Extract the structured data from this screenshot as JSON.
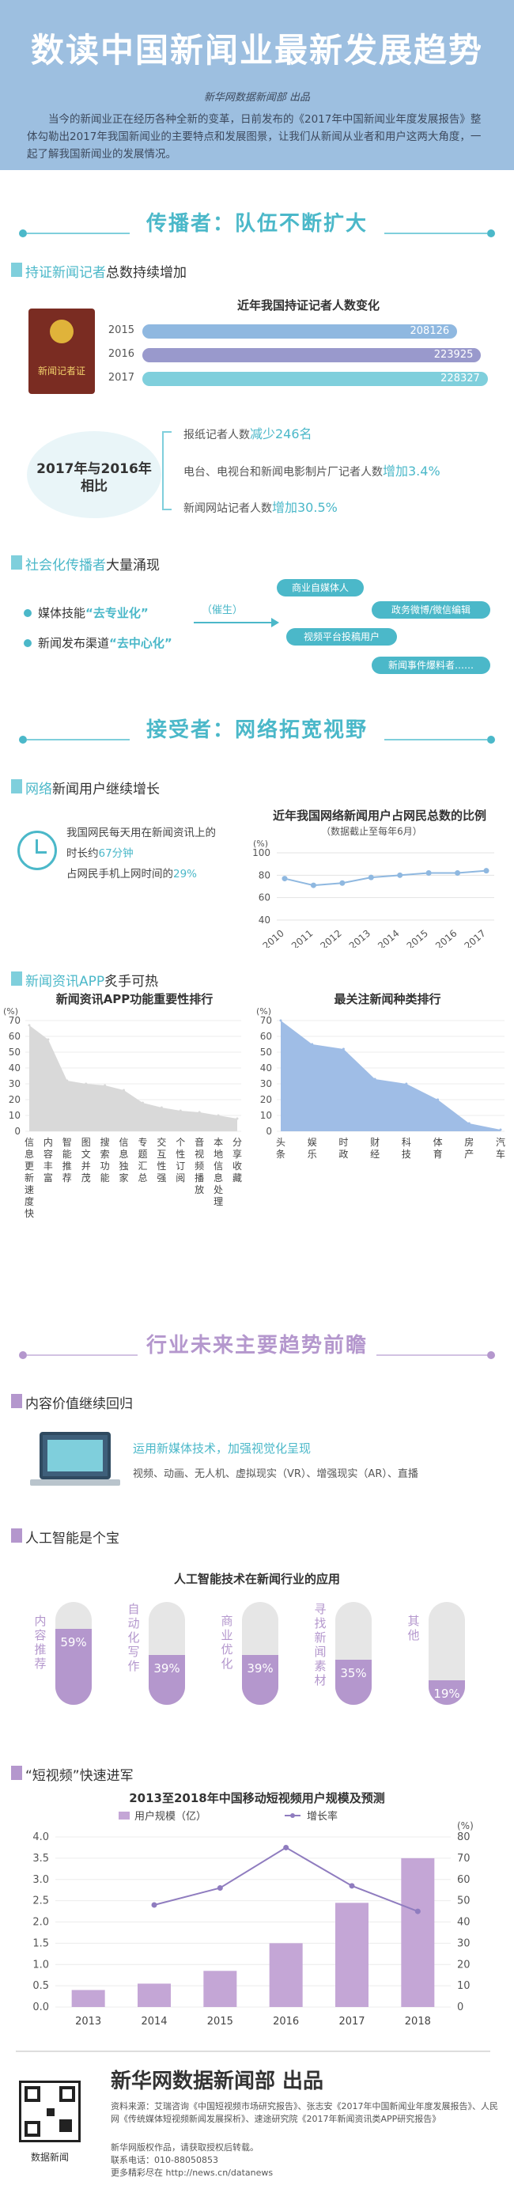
{
  "header": {
    "title": "数读中国新闻业最新发展趋势",
    "producer": "新华网数据新闻部 出品",
    "intro": "当今的新闻业正在经历各种全新的变革，日前发布的《2017年中国新闻业年度发展报告》整体勾勒出2017年我国新闻业的主要特点和发展图景，让我们从新闻从业者和用户这两大角度，一起了解我国新闻业的发展情况。"
  },
  "section1": {
    "banner": "传播者：队伍不断扩大",
    "sub1": {
      "highlight": "持证新闻记者",
      "rest": "总数持续增加"
    },
    "press_card_label": "新闻记者证",
    "chart_title": "近年我国持证记者人数变化",
    "compare_title": "2017年与2016年相比",
    "items": [
      {
        "text": "报纸记者人数",
        "hl": "减少246名"
      },
      {
        "text": "电台、电视台和新闻电影制片厂记者人数",
        "hl": "增加3.4%"
      },
      {
        "text": "新闻网站记者人数",
        "hl": "增加30.5%"
      }
    ],
    "sub2": {
      "highlight": "社会化传播者",
      "rest": "大量涌现"
    },
    "bullets": [
      {
        "text": "媒体技能",
        "hl": "“去专业化”"
      },
      {
        "text": "新闻发布渠道",
        "hl": "“去中心化”"
      }
    ],
    "arrow_label": "（催生）",
    "pills": [
      "商业自媒体人",
      "政务微博/微信编辑",
      "视频平台投稿用户",
      "新闻事件爆料者……"
    ]
  },
  "section2": {
    "banner": "接受者：网络拓宽视野",
    "sub1": {
      "highlight": "网络",
      "rest": "新闻用户继续增长"
    },
    "clock_text1": "我国网民每天用在新闻资讯上的",
    "clock_text2": "时长约",
    "clock_hl1": "67分钟",
    "clock_text3": "占网民手机上网时间的",
    "clock_hl2": "29%",
    "line_title": "近年我国网络新闻用户占网民总数的比例",
    "line_subtitle": "（数据截止至每年6月）",
    "line_unit": "(%)",
    "sub2": {
      "highlight": "新闻资讯APP",
      "rest": "炙手可热"
    },
    "app_title": "新闻资讯APP功能重要性排行",
    "type_title": "最关注新闻种类排行",
    "area_unit": "(%)"
  },
  "section3": {
    "banner": "行业未来主要趋势前瞻",
    "sub1": "内容价值继续回归",
    "tech_hl": "运用新媒体技术，加强视觉化呈现",
    "tech_list": "视频、动画、无人机、虚拟现实（VR）、增强现实（AR）、直播",
    "sub2": "人工智能是个宝",
    "ai_title": "人工智能技术在新闻行业的应用",
    "sub3": "“短视频”快速进军",
    "combo_title": "2013至2018年中国移动短视频用户规模及预测",
    "legend_bar": "用户规模（亿）",
    "legend_line": "增长率"
  },
  "footer": {
    "org": "新华网数据新闻部 出品",
    "qr_label": "数据新闻",
    "sources": "资料来源：艾瑞咨询《中国短视频市场研究报告》、张志安《2017年中国新闻业年度发展报告》、人民网《传统媒体短视频新闻发展探析》、速途研究院《2017年新闻资讯类APP研究报告》",
    "line2": "新华网版权作品，请获取授权后转载。",
    "line3": "联系电话：010-88050853",
    "line4": "更多精彩尽在 http://news.cn/datanews"
  },
  "chart_data": [
    {
      "type": "bar",
      "title": "近年我国持证记者人数变化",
      "categories": [
        "2015",
        "2016",
        "2017"
      ],
      "values": [
        208126,
        223925,
        228327
      ],
      "colors": [
        "#8fb8e0",
        "#9999cc",
        "#7fcfdc"
      ]
    },
    {
      "type": "line",
      "title": "近年我国网络新闻用户占网民总数的比例",
      "x": [
        "2010",
        "2011",
        "2012",
        "2013",
        "2014",
        "2015",
        "2016",
        "2017"
      ],
      "values": [
        77,
        71,
        73,
        78,
        80,
        82,
        82,
        84
      ],
      "ylim": [
        40,
        100
      ],
      "yticks": [
        40,
        60,
        80,
        100
      ]
    },
    {
      "type": "area",
      "title": "新闻资讯APP功能重要性排行",
      "categories": [
        "信息更新速度快",
        "内容丰富",
        "智能推荐",
        "图文并茂",
        "搜索功能",
        "信息独家",
        "专题汇总",
        "交互性强",
        "个性订阅",
        "音视频播放",
        "本地信息处理",
        "分享收藏"
      ],
      "values": [
        67,
        58,
        32,
        30,
        29,
        26,
        18,
        15,
        13,
        12,
        10,
        8
      ],
      "ylim": [
        0,
        70
      ],
      "yticks": [
        0,
        10,
        20,
        30,
        40,
        50,
        60,
        70
      ]
    },
    {
      "type": "area",
      "title": "最关注新闻种类排行",
      "categories": [
        "头条",
        "娱乐",
        "时政",
        "财经",
        "科技",
        "体育",
        "房产",
        "汽车"
      ],
      "values": [
        70,
        55,
        52,
        33,
        30,
        20,
        5,
        1
      ],
      "ylim": [
        0,
        70
      ],
      "yticks": [
        0,
        10,
        20,
        30,
        40,
        50,
        60,
        70
      ]
    },
    {
      "type": "bar",
      "title": "人工智能技术在新闻行业的应用",
      "categories": [
        "内容推荐",
        "自动化写作",
        "商业优化",
        "寻找新闻素材",
        "其他"
      ],
      "values": [
        59,
        39,
        39,
        35,
        19
      ]
    },
    {
      "type": "bar",
      "title": "2013至2018年中国移动短视频用户规模及预测",
      "categories": [
        "2013",
        "2014",
        "2015",
        "2016",
        "2017",
        "2018"
      ],
      "series": [
        {
          "name": "用户规模（亿）",
          "values": [
            0.4,
            0.55,
            0.85,
            1.5,
            2.45,
            3.5
          ]
        },
        {
          "name": "增长率",
          "values": [
            null,
            48,
            56,
            75,
            57,
            45
          ]
        }
      ],
      "ylim": [
        0,
        4.0
      ],
      "yticks": [
        0,
        0.5,
        1.0,
        1.5,
        2.0,
        2.5,
        3.0,
        3.5,
        4.0
      ],
      "y2lim": [
        0,
        80
      ],
      "y2ticks": [
        0,
        10,
        20,
        30,
        40,
        50,
        60,
        70,
        80
      ],
      "y2unit": "(%)",
      "colors": {
        "bar": "#c4a6d6",
        "line": "#8f7cbf"
      }
    }
  ]
}
